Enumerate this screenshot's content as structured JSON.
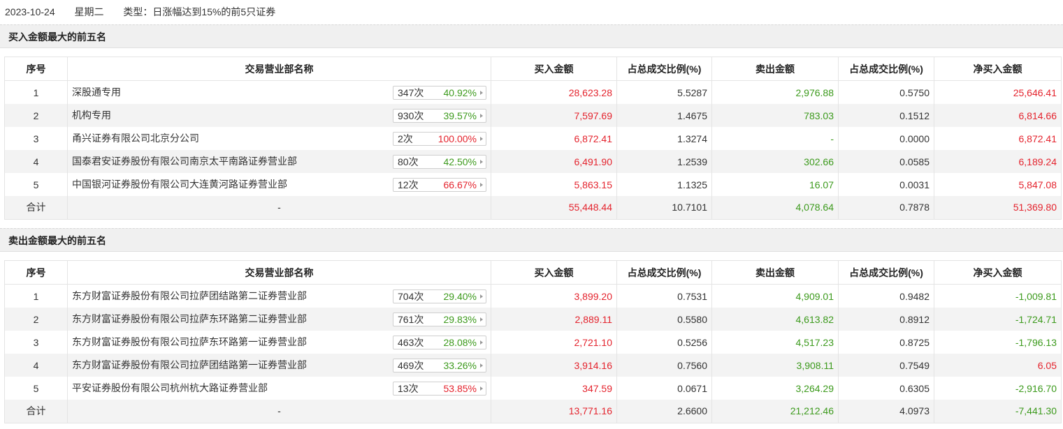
{
  "header": {
    "date": "2023-10-24",
    "weekday": "星期二",
    "type_label": "类型：日涨幅达到15%的前5只证券"
  },
  "columns": [
    "序号",
    "交易营业部名称",
    "买入金额",
    "占总成交比例(%)",
    "卖出金额",
    "占总成交比例(%)",
    "净买入金额"
  ],
  "buy_section": {
    "title": "买入金额最大的前五名",
    "rows": [
      {
        "no": "1",
        "name": "深股通专用",
        "count": "347次",
        "pct": "40.92%",
        "pct_color": "green",
        "buy": "28,623.28",
        "buy_ratio": "5.5287",
        "sell": "2,976.88",
        "sell_ratio": "0.5750",
        "net": "25,646.41",
        "net_color": "red"
      },
      {
        "no": "2",
        "name": "机构专用",
        "count": "930次",
        "pct": "39.57%",
        "pct_color": "green",
        "buy": "7,597.69",
        "buy_ratio": "1.4675",
        "sell": "783.03",
        "sell_ratio": "0.1512",
        "net": "6,814.66",
        "net_color": "red"
      },
      {
        "no": "3",
        "name": "甬兴证券有限公司北京分公司",
        "count": "2次",
        "pct": "100.00%",
        "pct_color": "red",
        "buy": "6,872.41",
        "buy_ratio": "1.3274",
        "sell": "-",
        "sell_ratio": "0.0000",
        "net": "6,872.41",
        "net_color": "red"
      },
      {
        "no": "4",
        "name": "国泰君安证券股份有限公司南京太平南路证券营业部",
        "count": "80次",
        "pct": "42.50%",
        "pct_color": "green",
        "buy": "6,491.90",
        "buy_ratio": "1.2539",
        "sell": "302.66",
        "sell_ratio": "0.0585",
        "net": "6,189.24",
        "net_color": "red"
      },
      {
        "no": "5",
        "name": "中国银河证券股份有限公司大连黄河路证券营业部",
        "count": "12次",
        "pct": "66.67%",
        "pct_color": "red",
        "buy": "5,863.15",
        "buy_ratio": "1.1325",
        "sell": "16.07",
        "sell_ratio": "0.0031",
        "net": "5,847.08",
        "net_color": "red"
      }
    ],
    "total": {
      "label": "合计",
      "name": "-",
      "buy": "55,448.44",
      "buy_ratio": "10.7101",
      "sell": "4,078.64",
      "sell_ratio": "0.7878",
      "net": "51,369.80",
      "net_color": "red"
    }
  },
  "sell_section": {
    "title": "卖出金额最大的前五名",
    "rows": [
      {
        "no": "1",
        "name": "东方财富证券股份有限公司拉萨团结路第二证券营业部",
        "count": "704次",
        "pct": "29.40%",
        "pct_color": "green",
        "buy": "3,899.20",
        "buy_ratio": "0.7531",
        "sell": "4,909.01",
        "sell_ratio": "0.9482",
        "net": "-1,009.81",
        "net_color": "green"
      },
      {
        "no": "2",
        "name": "东方财富证券股份有限公司拉萨东环路第二证券营业部",
        "count": "761次",
        "pct": "29.83%",
        "pct_color": "green",
        "buy": "2,889.11",
        "buy_ratio": "0.5580",
        "sell": "4,613.82",
        "sell_ratio": "0.8912",
        "net": "-1,724.71",
        "net_color": "green"
      },
      {
        "no": "3",
        "name": "东方财富证券股份有限公司拉萨东环路第一证券营业部",
        "count": "463次",
        "pct": "28.08%",
        "pct_color": "green",
        "buy": "2,721.10",
        "buy_ratio": "0.5256",
        "sell": "4,517.23",
        "sell_ratio": "0.8725",
        "net": "-1,796.13",
        "net_color": "green"
      },
      {
        "no": "4",
        "name": "东方财富证券股份有限公司拉萨团结路第一证券营业部",
        "count": "469次",
        "pct": "33.26%",
        "pct_color": "green",
        "buy": "3,914.16",
        "buy_ratio": "0.7560",
        "sell": "3,908.11",
        "sell_ratio": "0.7549",
        "net": "6.05",
        "net_color": "red"
      },
      {
        "no": "5",
        "name": "平安证券股份有限公司杭州杭大路证券营业部",
        "count": "13次",
        "pct": "53.85%",
        "pct_color": "red",
        "buy": "347.59",
        "buy_ratio": "0.0671",
        "sell": "3,264.29",
        "sell_ratio": "0.6305",
        "net": "-2,916.70",
        "net_color": "green"
      }
    ],
    "total": {
      "label": "合计",
      "name": "-",
      "buy": "13,771.16",
      "buy_ratio": "2.6600",
      "sell": "21,212.46",
      "sell_ratio": "4.0973",
      "net": "-7,441.30",
      "net_color": "green"
    }
  },
  "colors": {
    "red": "#e4232d",
    "green": "#3c9a1c",
    "section_bg": "#f0f0f0",
    "stripe": "#f3f3f3"
  }
}
